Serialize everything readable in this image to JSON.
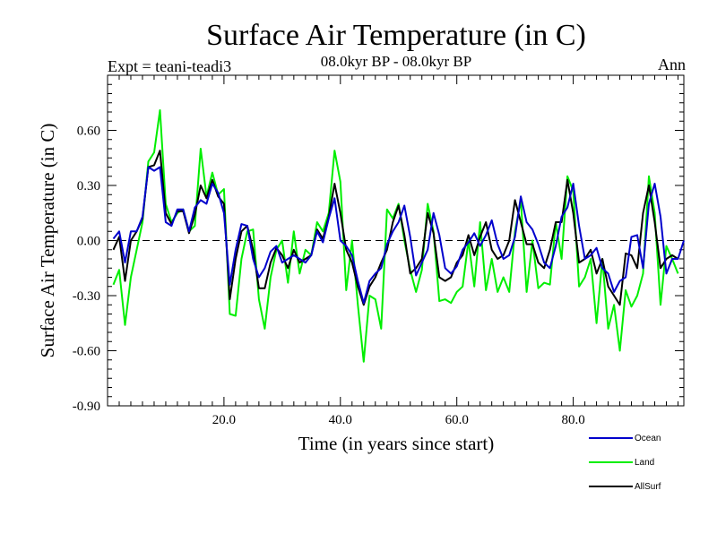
{
  "chart_data": {
    "type": "line",
    "title": "Surface Air Temperature (in C)",
    "subtitle_left": "Expt = teani-teadi3",
    "subtitle_center": "08.0kyr BP - 08.0kyr BP",
    "subtitle_right": "Ann",
    "xlabel": "Time (in years since start)",
    "ylabel": "Surface Air Temperature (in C)",
    "xlim": [
      0,
      99
    ],
    "ylim": [
      -0.9,
      0.9
    ],
    "xticks": [
      20,
      40,
      60,
      80
    ],
    "xtick_labels": [
      "20.0",
      "40.0",
      "60.0",
      "80.0"
    ],
    "yticks": [
      -0.9,
      -0.6,
      -0.3,
      0.0,
      0.3,
      0.6
    ],
    "ytick_labels": [
      "-0.90",
      "-0.60",
      "-0.30",
      "0.00",
      "0.30",
      "0.60"
    ],
    "zero_line": "dashed",
    "series": [
      {
        "name": "Land",
        "color": "#00ee00",
        "values": [
          -0.24,
          -0.16,
          -0.46,
          -0.2,
          -0.05,
          0.1,
          0.43,
          0.48,
          0.71,
          0.2,
          0.1,
          0.15,
          0.17,
          0.05,
          0.08,
          0.5,
          0.24,
          0.37,
          0.25,
          0.28,
          -0.4,
          -0.41,
          -0.1,
          0.05,
          0.06,
          -0.32,
          -0.48,
          -0.2,
          -0.05,
          0.0,
          -0.23,
          0.05,
          -0.18,
          -0.05,
          -0.08,
          0.1,
          0.05,
          0.15,
          0.49,
          0.32,
          -0.27,
          0.0,
          -0.35,
          -0.66,
          -0.3,
          -0.32,
          -0.48,
          0.17,
          0.12,
          0.2,
          0.0,
          -0.16,
          -0.28,
          -0.16,
          0.2,
          0.05,
          -0.33,
          -0.32,
          -0.34,
          -0.28,
          -0.25,
          0.0,
          -0.25,
          0.1,
          -0.27,
          -0.1,
          -0.28,
          -0.2,
          -0.28,
          0.05,
          0.22,
          -0.28,
          0.0,
          -0.26,
          -0.23,
          -0.24,
          0.1,
          -0.1,
          0.35,
          0.27,
          -0.25,
          -0.2,
          -0.1,
          -0.45,
          -0.1,
          -0.48,
          -0.35,
          -0.6,
          -0.27,
          -0.36,
          -0.3,
          -0.18,
          0.35,
          0.15,
          -0.35,
          -0.03,
          -0.1,
          -0.18
        ]
      },
      {
        "name": "AllSurf",
        "color": "#000000",
        "values": [
          -0.05,
          0.02,
          -0.22,
          0.0,
          0.05,
          0.12,
          0.4,
          0.41,
          0.49,
          0.15,
          0.09,
          0.16,
          0.16,
          0.04,
          0.14,
          0.3,
          0.23,
          0.33,
          0.24,
          0.2,
          -0.32,
          -0.1,
          0.05,
          0.08,
          -0.05,
          -0.26,
          -0.26,
          -0.12,
          -0.04,
          -0.08,
          -0.15,
          -0.05,
          -0.12,
          -0.1,
          -0.08,
          0.06,
          0.01,
          0.13,
          0.31,
          0.15,
          -0.05,
          -0.12,
          -0.25,
          -0.35,
          -0.25,
          -0.2,
          -0.12,
          -0.05,
          0.1,
          0.19,
          0.03,
          -0.18,
          -0.15,
          -0.1,
          0.15,
          0.04,
          -0.2,
          -0.22,
          -0.2,
          -0.12,
          -0.08,
          0.03,
          -0.08,
          0.02,
          0.1,
          -0.05,
          -0.1,
          -0.08,
          0.0,
          0.22,
          0.1,
          -0.02,
          -0.02,
          -0.12,
          -0.15,
          -0.05,
          0.1,
          0.1,
          0.33,
          0.15,
          -0.12,
          -0.1,
          -0.05,
          -0.18,
          -0.1,
          -0.25,
          -0.3,
          -0.35,
          -0.07,
          -0.08,
          -0.15,
          0.15,
          0.3,
          0.1,
          -0.15,
          -0.1,
          -0.08,
          -0.1
        ]
      },
      {
        "name": "Ocean",
        "color": "#0000cc",
        "values": [
          0.01,
          0.05,
          -0.12,
          0.05,
          0.05,
          0.13,
          0.4,
          0.38,
          0.4,
          0.1,
          0.08,
          0.17,
          0.17,
          0.05,
          0.18,
          0.22,
          0.2,
          0.31,
          0.26,
          0.15,
          -0.24,
          -0.05,
          0.09,
          0.08,
          -0.1,
          -0.2,
          -0.15,
          -0.06,
          -0.03,
          -0.12,
          -0.1,
          -0.08,
          -0.1,
          -0.12,
          -0.08,
          0.05,
          -0.01,
          0.12,
          0.23,
          0.0,
          -0.03,
          -0.08,
          -0.22,
          -0.34,
          -0.22,
          -0.18,
          -0.15,
          -0.02,
          0.05,
          0.1,
          0.19,
          0.02,
          -0.19,
          -0.12,
          -0.05,
          0.15,
          0.03,
          -0.15,
          -0.18,
          -0.14,
          -0.05,
          -0.01,
          0.04,
          -0.03,
          0.03,
          0.11,
          -0.02,
          -0.1,
          -0.08,
          0.02,
          0.24,
          0.1,
          0.06,
          -0.02,
          -0.12,
          -0.15,
          -0.03,
          0.13,
          0.18,
          0.31,
          0.08,
          -0.1,
          -0.08,
          -0.04,
          -0.15,
          -0.18,
          -0.28,
          -0.22,
          -0.2,
          0.02,
          0.03,
          -0.15,
          0.2,
          0.31,
          0.13,
          -0.18,
          -0.1,
          -0.1,
          0.0
        ]
      }
    ]
  }
}
